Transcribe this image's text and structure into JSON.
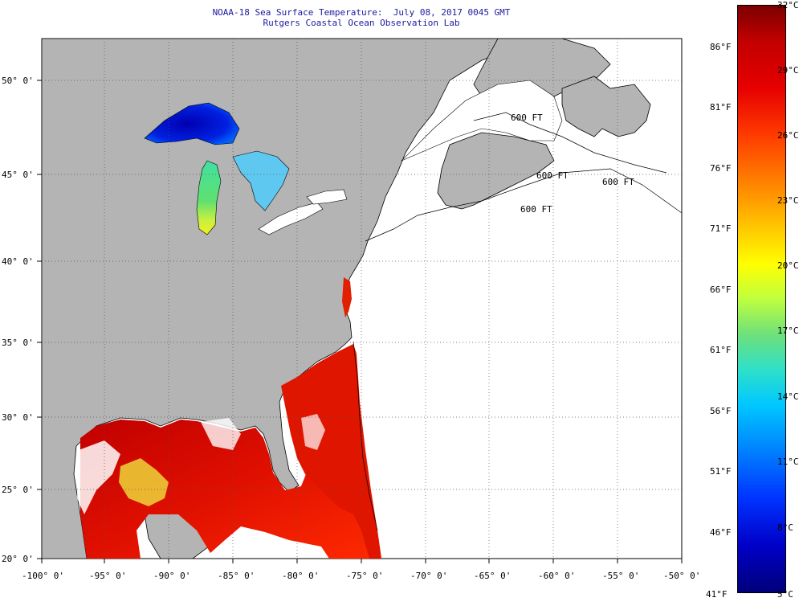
{
  "title": {
    "line1": "NOAA-18 Sea Surface Temperature:  July 08, 2017 0045 GMT",
    "line2": "Rutgers Coastal Ocean Observation Lab"
  },
  "map": {
    "background_color": "#b4b4b4",
    "ocean_nodata_color": "#ffffff",
    "lon_labels": [
      "-100° 0'",
      "-95° 0'",
      "-90° 0'",
      "-85° 0'",
      "-80° 0'",
      "-75° 0'",
      "-70° 0'",
      "-65° 0'",
      "-60° 0'",
      "-55° 0'",
      "-50° 0'"
    ],
    "lat_labels": [
      "50° 0'",
      "45° 0'",
      "40° 0'",
      "35° 0'",
      "30° 0'",
      "25° 0'",
      "20° 0'"
    ],
    "isobath_labels": [
      "600 FT",
      "600 FT",
      "600 FT",
      "600 FT"
    ]
  },
  "colorbar": {
    "celsius": [
      "32°C",
      "29°C",
      "26°C",
      "23°C",
      "20°C",
      "17°C",
      "14°C",
      "11°C",
      "8°C",
      "5°C"
    ],
    "fahrenheit": [
      "86°F",
      "81°F",
      "76°F",
      "71°F",
      "66°F",
      "61°F",
      "56°F",
      "51°F",
      "46°F",
      "41°F"
    ],
    "colors": {
      "warm": "#c20000",
      "hot": "#e60000",
      "cool": "#0033ff",
      "mild": "#ffff00"
    }
  }
}
